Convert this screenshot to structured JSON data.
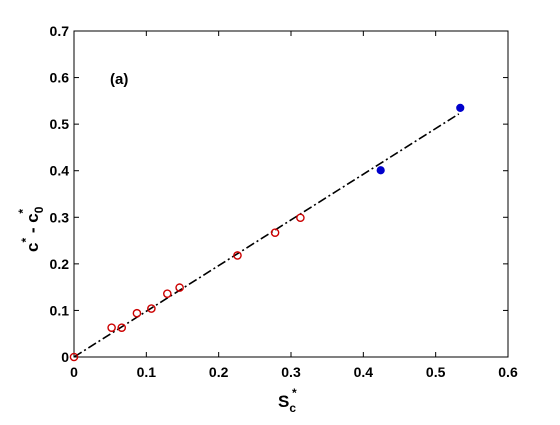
{
  "chart_data": {
    "type": "scatter",
    "panel_label": "(a)",
    "xlabel": {
      "base": "S",
      "sub": "c",
      "sup": "*"
    },
    "ylabel": {
      "part1": "c",
      "sup1": "*",
      "middle": " - c",
      "sub2": "0",
      "sup2": "*"
    },
    "xlim": [
      0,
      0.6
    ],
    "ylim": [
      0,
      0.7
    ],
    "xticks": [
      0,
      0.1,
      0.2,
      0.3,
      0.4,
      0.5,
      0.6
    ],
    "xtick_labels": [
      "0",
      "0.1",
      "0.2",
      "0.3",
      "0.4",
      "0.5",
      "0.6"
    ],
    "yticks": [
      0,
      0.1,
      0.2,
      0.3,
      0.4,
      0.5,
      0.6,
      0.7
    ],
    "ytick_labels": [
      "0",
      "0.1",
      "0.2",
      "0.3",
      "0.4",
      "0.5",
      "0.6",
      "0.7"
    ],
    "grid": false,
    "series": [
      {
        "marker": "open-circle",
        "color": "#cc0000",
        "x": [
          0,
          0.052,
          0.066,
          0.087,
          0.107,
          0.129,
          0.146,
          0.226,
          0.278,
          0.313
        ],
        "y": [
          0,
          0.063,
          0.063,
          0.094,
          0.104,
          0.136,
          0.149,
          0.218,
          0.267,
          0.299
        ]
      },
      {
        "marker": "filled-circle",
        "color": "#0000cc",
        "x": [
          0.424,
          0.534
        ],
        "y": [
          0.401,
          0.535
        ]
      },
      {
        "line": "dash-dot",
        "color": "#000000",
        "x": [
          0,
          0.532
        ],
        "y": [
          0,
          0.522
        ]
      }
    ]
  }
}
